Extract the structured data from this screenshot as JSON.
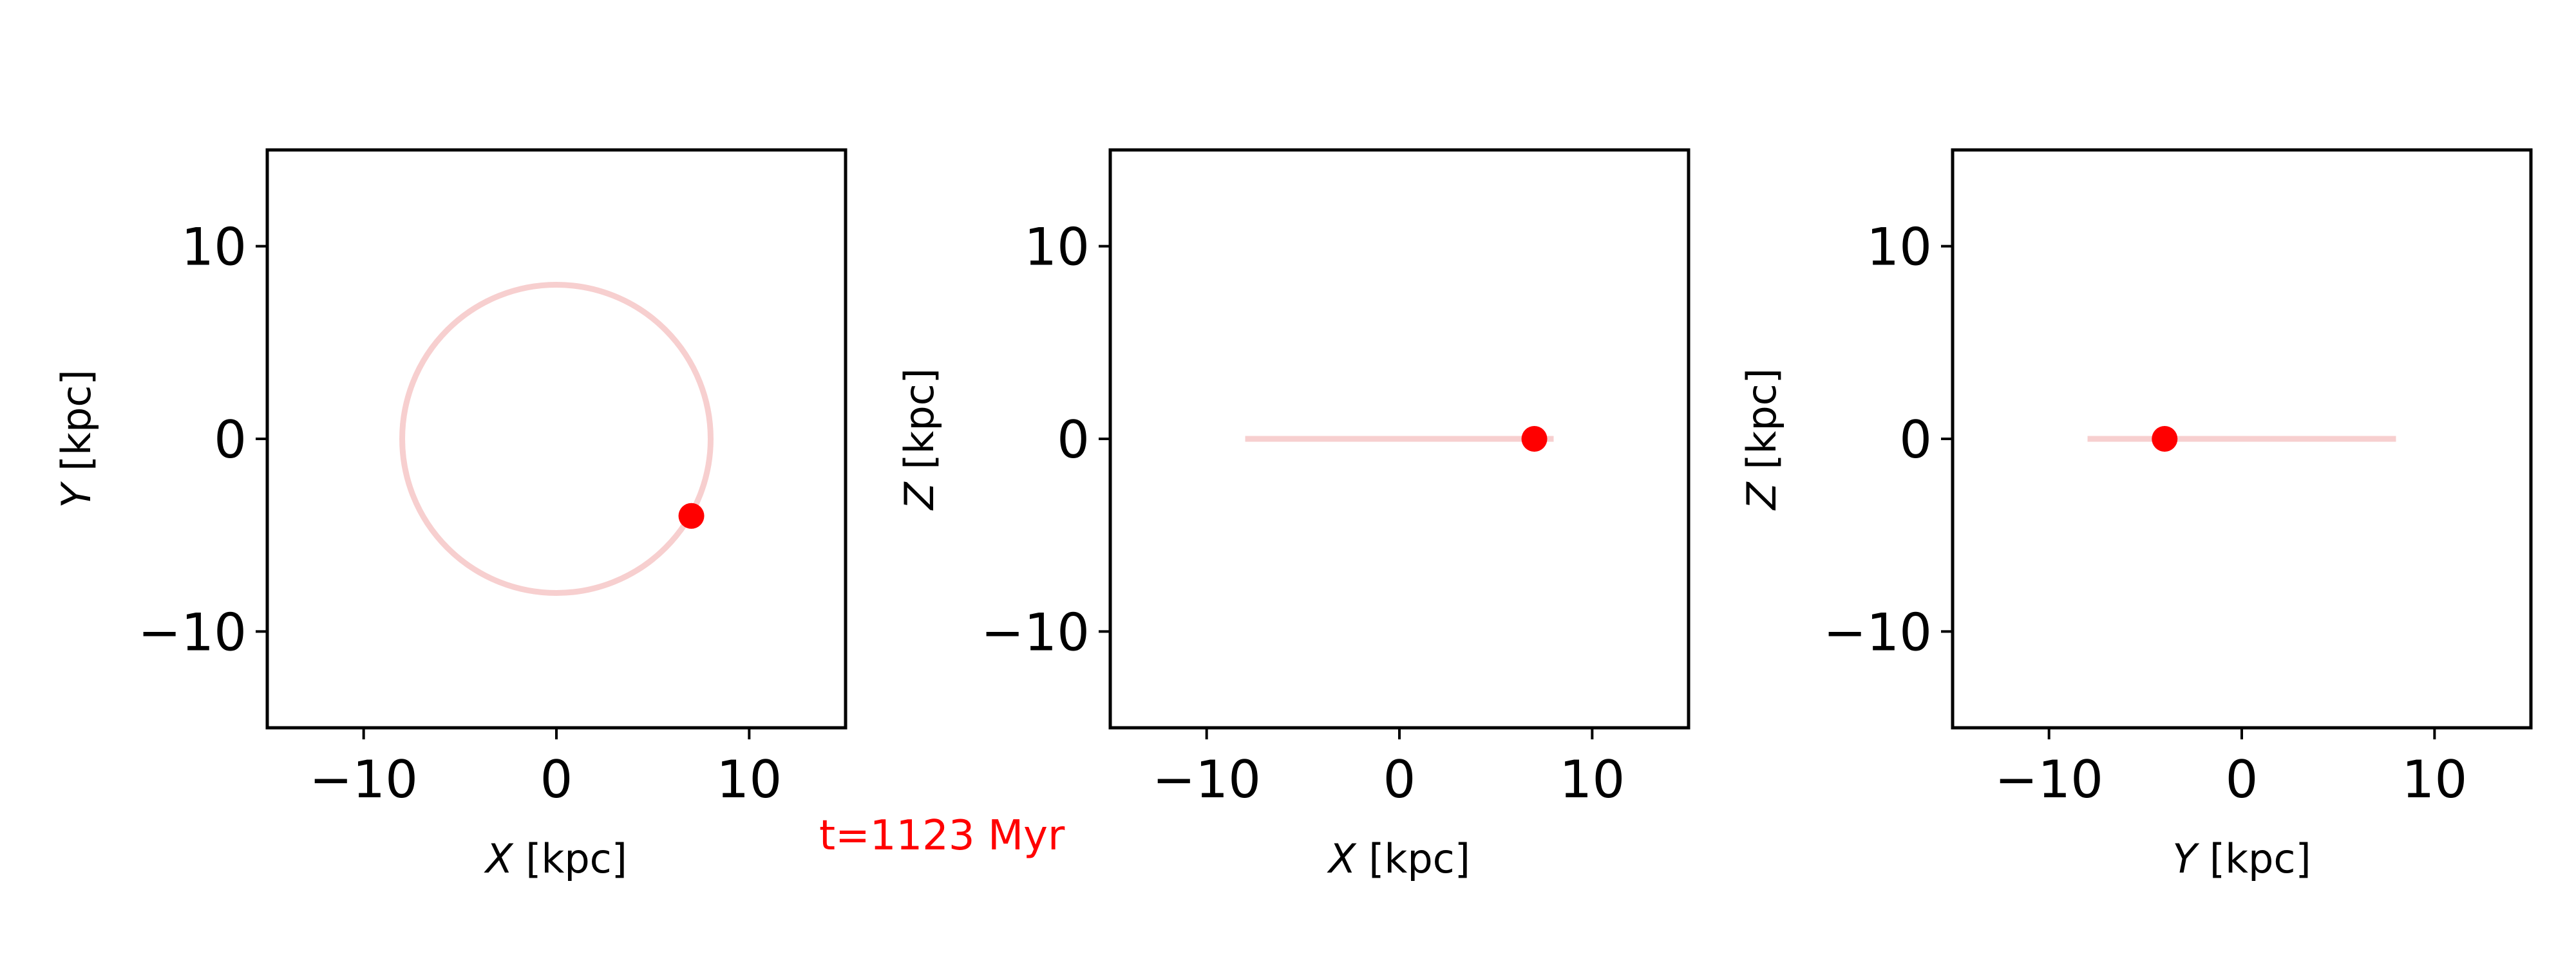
{
  "annotation": {
    "text": "t=1123 Myr",
    "color": "#ff0000"
  },
  "colors": {
    "orbit": "#f7cfcf",
    "marker": "#ff0000",
    "axes": "#000000"
  },
  "chart_data": [
    {
      "type": "line",
      "xlabel_var": "X",
      "xlabel_unit": " [kpc]",
      "ylabel_var": "Y",
      "ylabel_unit": " [kpc]",
      "xlim": [
        -15,
        15
      ],
      "ylim": [
        -15,
        15
      ],
      "xticks": [
        -10,
        0,
        10
      ],
      "yticks": [
        -10,
        0,
        10
      ],
      "tick_labels": [
        "−10",
        "0",
        "10"
      ],
      "grid": false,
      "series": [
        {
          "kind": "orbit-circle",
          "center": [
            0,
            0
          ],
          "radius": 8
        },
        {
          "kind": "current-position",
          "x": 7.0,
          "y": -4.0
        }
      ]
    },
    {
      "type": "line",
      "xlabel_var": "X",
      "xlabel_unit": " [kpc]",
      "ylabel_var": "Z",
      "ylabel_unit": " [kpc]",
      "xlim": [
        -15,
        15
      ],
      "ylim": [
        -15,
        15
      ],
      "xticks": [
        -10,
        0,
        10
      ],
      "yticks": [
        -10,
        0,
        10
      ],
      "tick_labels": [
        "−10",
        "0",
        "10"
      ],
      "grid": false,
      "series": [
        {
          "kind": "orbit-track",
          "x": [
            -8,
            8
          ],
          "y": [
            0,
            0
          ]
        },
        {
          "kind": "current-position",
          "x": 7.0,
          "y": 0.0
        }
      ]
    },
    {
      "type": "line",
      "xlabel_var": "Y",
      "xlabel_unit": " [kpc]",
      "ylabel_var": "Z",
      "ylabel_unit": " [kpc]",
      "xlim": [
        -15,
        15
      ],
      "ylim": [
        -15,
        15
      ],
      "xticks": [
        -10,
        0,
        10
      ],
      "yticks": [
        -10,
        0,
        10
      ],
      "tick_labels": [
        "−10",
        "0",
        "10"
      ],
      "grid": false,
      "series": [
        {
          "kind": "orbit-track",
          "x": [
            -8,
            8
          ],
          "y": [
            0,
            0
          ]
        },
        {
          "kind": "current-position",
          "x": -4.0,
          "y": 0.0
        }
      ]
    }
  ]
}
